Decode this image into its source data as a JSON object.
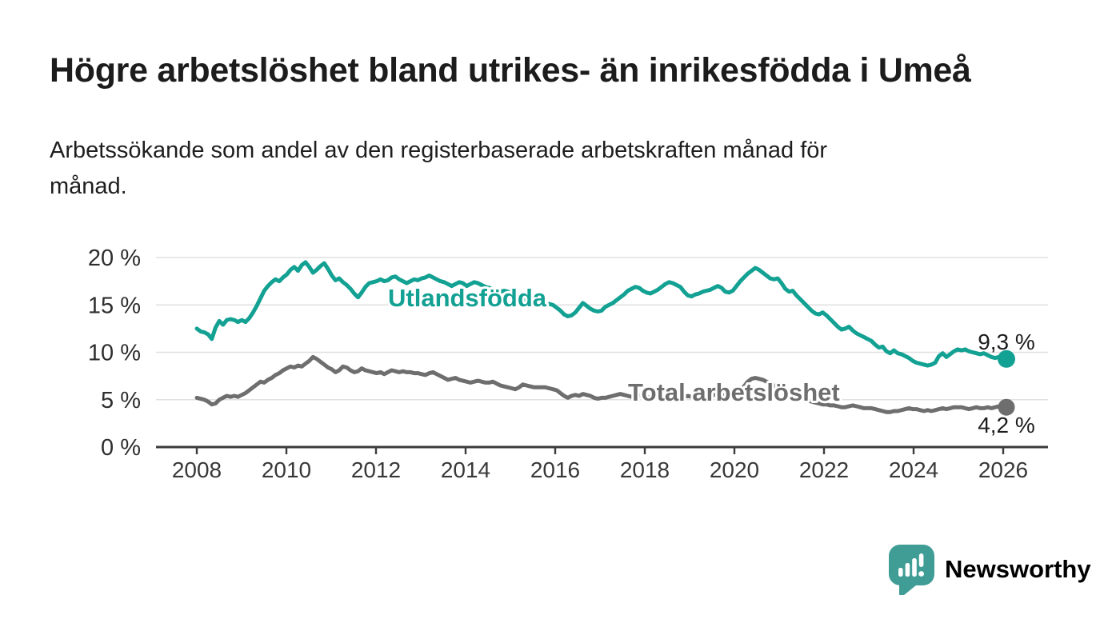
{
  "header": {
    "title": "Högre arbetslöshet bland utrikes- än inrikesfödda i Umeå",
    "subtitle": "Arbetssökande som andel av den registerbaserade arbetskraften månad för\nmånad."
  },
  "chart_data": {
    "type": "line",
    "title": "Högre arbetslöshet bland utrikes- än inrikesfödda i Umeå",
    "subtitle": "Arbetssökande som andel av den registerbaserade arbetskraften månad för månad.",
    "x_start": "2008-01",
    "x_freq": "monthly",
    "ylim": [
      0,
      20
    ],
    "grid": "horizontal",
    "y_ticks": [
      {
        "value": 0,
        "label": "0 %"
      },
      {
        "value": 5,
        "label": "5 %"
      },
      {
        "value": 10,
        "label": "10 %"
      },
      {
        "value": 15,
        "label": "15 %"
      },
      {
        "value": 20,
        "label": "20 %"
      }
    ],
    "x_tick_years": [
      "2008",
      "2010",
      "2012",
      "2014",
      "2016",
      "2018",
      "2020",
      "2022",
      "2024",
      "2026"
    ],
    "series": [
      {
        "name": "Utlandsfödda",
        "color": "#12a192",
        "end_label": "9,3 %",
        "end_value": 9.3,
        "values": [
          12.5,
          12.2,
          12.1,
          11.9,
          11.4,
          12.6,
          13.3,
          12.9,
          13.4,
          13.5,
          13.4,
          13.2,
          13.4,
          13.2,
          13.6,
          14.2,
          14.9,
          15.7,
          16.5,
          17.0,
          17.4,
          17.7,
          17.5,
          17.9,
          18.2,
          18.7,
          19.0,
          18.6,
          19.2,
          19.5,
          19.0,
          18.4,
          18.7,
          19.1,
          19.4,
          18.8,
          18.1,
          17.6,
          17.8,
          17.4,
          17.1,
          16.7,
          16.2,
          15.8,
          16.3,
          16.9,
          17.3,
          17.4,
          17.5,
          17.7,
          17.5,
          17.6,
          17.9,
          18.0,
          17.7,
          17.5,
          17.3,
          17.5,
          17.7,
          17.6,
          17.8,
          17.9,
          18.1,
          17.9,
          17.7,
          17.5,
          17.4,
          17.2,
          17.0,
          17.2,
          17.4,
          17.3,
          17.0,
          17.2,
          17.4,
          17.3,
          17.1,
          16.9,
          16.8,
          16.6,
          16.5,
          16.4,
          16.5,
          16.4,
          16.2,
          16.0,
          15.8,
          15.7,
          15.5,
          15.4,
          15.3,
          15.2,
          15.1,
          15.0,
          15.1,
          15.0,
          14.7,
          14.4,
          14.0,
          13.8,
          13.9,
          14.2,
          14.7,
          15.2,
          14.9,
          14.6,
          14.4,
          14.3,
          14.4,
          14.8,
          15.0,
          15.2,
          15.5,
          15.8,
          16.1,
          16.5,
          16.7,
          16.9,
          16.8,
          16.5,
          16.3,
          16.2,
          16.4,
          16.6,
          16.9,
          17.2,
          17.4,
          17.3,
          17.1,
          16.9,
          16.4,
          16.0,
          15.9,
          16.1,
          16.2,
          16.4,
          16.5,
          16.6,
          16.8,
          17.0,
          16.8,
          16.4,
          16.3,
          16.5,
          17.0,
          17.5,
          17.9,
          18.3,
          18.6,
          18.9,
          18.7,
          18.4,
          18.1,
          17.8,
          17.7,
          17.8,
          17.3,
          16.7,
          16.4,
          16.5,
          16.0,
          15.6,
          15.2,
          14.8,
          14.4,
          14.1,
          14.0,
          14.2,
          13.9,
          13.5,
          13.1,
          12.7,
          12.4,
          12.5,
          12.7,
          12.3,
          12.0,
          11.8,
          11.6,
          11.4,
          11.2,
          10.8,
          10.5,
          10.6,
          10.1,
          9.9,
          10.2,
          9.9,
          9.8,
          9.6,
          9.4,
          9.1,
          8.9,
          8.8,
          8.7,
          8.6,
          8.7,
          8.9,
          9.6,
          9.9,
          9.5,
          9.8,
          10.1,
          10.3,
          10.2,
          10.3,
          10.1,
          10.0,
          9.9,
          9.8,
          9.9,
          9.7,
          9.5,
          9.4,
          9.5,
          9.4,
          9.3
        ]
      },
      {
        "name": "Total arbetslöshet",
        "color": "#6e6e6e",
        "end_label": "4,2 %",
        "end_value": 4.2,
        "values": [
          5.2,
          5.1,
          5.0,
          4.8,
          4.5,
          4.6,
          5.0,
          5.2,
          5.4,
          5.3,
          5.4,
          5.3,
          5.5,
          5.7,
          6.0,
          6.3,
          6.6,
          6.9,
          6.8,
          7.1,
          7.3,
          7.6,
          7.8,
          8.1,
          8.3,
          8.5,
          8.4,
          8.6,
          8.5,
          8.8,
          9.1,
          9.5,
          9.3,
          9.0,
          8.7,
          8.4,
          8.2,
          7.9,
          8.1,
          8.5,
          8.4,
          8.1,
          7.9,
          8.0,
          8.3,
          8.1,
          8.0,
          7.9,
          7.8,
          7.9,
          7.7,
          7.9,
          8.1,
          8.0,
          7.9,
          8.0,
          7.9,
          7.9,
          7.8,
          7.8,
          7.7,
          7.6,
          7.8,
          7.9,
          7.7,
          7.5,
          7.3,
          7.1,
          7.2,
          7.3,
          7.1,
          7.0,
          6.9,
          6.8,
          6.9,
          7.0,
          6.9,
          6.8,
          6.8,
          6.9,
          6.7,
          6.5,
          6.4,
          6.3,
          6.2,
          6.1,
          6.3,
          6.6,
          6.5,
          6.4,
          6.3,
          6.3,
          6.3,
          6.3,
          6.2,
          6.1,
          6.0,
          5.7,
          5.4,
          5.2,
          5.4,
          5.5,
          5.4,
          5.6,
          5.5,
          5.4,
          5.2,
          5.1,
          5.2,
          5.2,
          5.3,
          5.4,
          5.5,
          5.6,
          5.5,
          5.4,
          5.3,
          5.4,
          5.5,
          5.4,
          5.3,
          5.2,
          5.3,
          5.4,
          5.3,
          5.4,
          5.5,
          5.4,
          5.3,
          5.2,
          5.3,
          5.4,
          5.3,
          5.2,
          5.1,
          5.2,
          5.3,
          5.4,
          5.5,
          5.6,
          5.5,
          5.4,
          5.5,
          5.6,
          5.8,
          6.0,
          6.4,
          6.9,
          7.2,
          7.3,
          7.2,
          7.1,
          6.9,
          6.7,
          6.5,
          6.4,
          6.2,
          6.0,
          5.8,
          5.6,
          5.4,
          5.2,
          5.0,
          4.9,
          4.8,
          4.7,
          4.6,
          4.5,
          4.5,
          4.4,
          4.4,
          4.3,
          4.2,
          4.2,
          4.3,
          4.4,
          4.3,
          4.2,
          4.1,
          4.1,
          4.1,
          4.0,
          3.9,
          3.8,
          3.7,
          3.7,
          3.8,
          3.8,
          3.9,
          4.0,
          4.1,
          4.0,
          4.0,
          3.9,
          3.8,
          3.9,
          3.8,
          3.9,
          4.0,
          4.1,
          4.0,
          4.1,
          4.2,
          4.2,
          4.2,
          4.1,
          4.0,
          4.1,
          4.2,
          4.1,
          4.1,
          4.2,
          4.1,
          4.2,
          4.3,
          4.2,
          4.2
        ]
      }
    ]
  },
  "branding": {
    "name": "Newsworthy",
    "color": "#3f9d95"
  }
}
